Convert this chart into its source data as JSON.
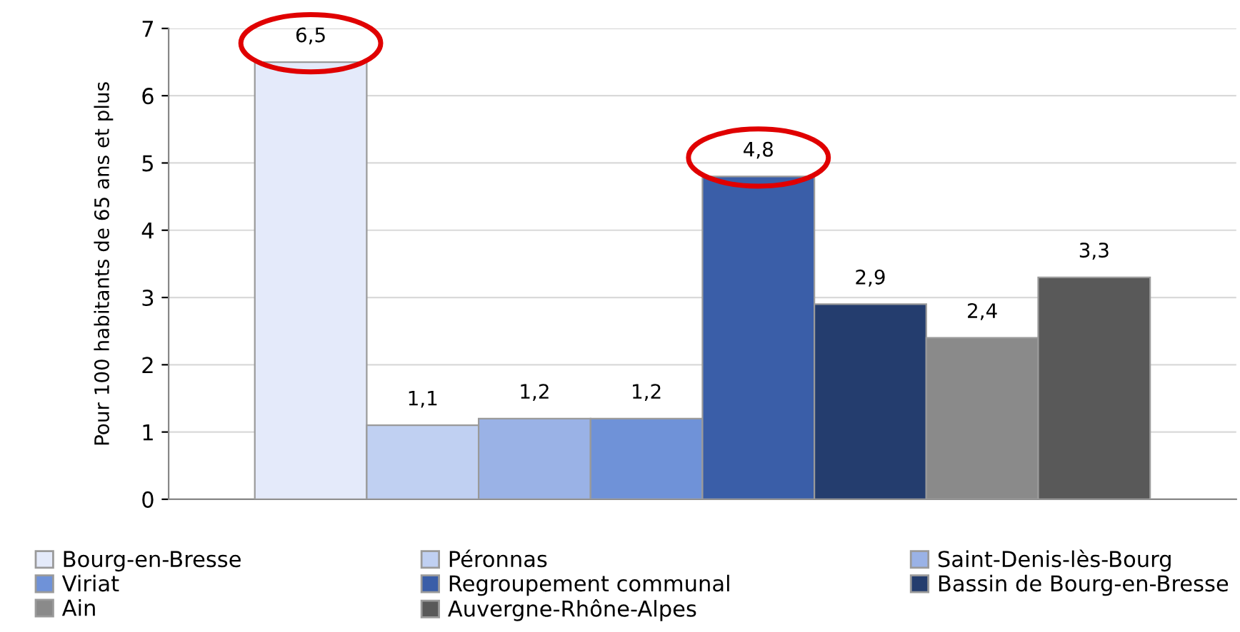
{
  "chart_data": {
    "type": "bar",
    "ylabel": "Pour 100 habitants de 65 ans et plus",
    "categories": [
      null
    ],
    "ylim": [
      0,
      7
    ],
    "yticks": [
      0,
      1,
      2,
      3,
      4,
      5,
      6,
      7
    ],
    "grid": "y",
    "legend": "bottom",
    "series": [
      {
        "name": "Bourg-en-Bresse",
        "color": "#e4eafa",
        "values": [
          6.5
        ],
        "value_labels": [
          "6,5"
        ]
      },
      {
        "name": "Péronnas",
        "color": "#c0d0f2",
        "values": [
          1.1
        ],
        "value_labels": [
          "1,1"
        ]
      },
      {
        "name": "Saint-Denis-lès-Bourg",
        "color": "#9ab2e6",
        "values": [
          1.2
        ],
        "value_labels": [
          "1,2"
        ]
      },
      {
        "name": "Viriat",
        "color": "#6f92d8",
        "values": [
          1.2
        ],
        "value_labels": [
          "1,2"
        ]
      },
      {
        "name": "Regroupement communal",
        "color": "#3a5ea8",
        "values": [
          4.8
        ],
        "value_labels": [
          "4,8"
        ]
      },
      {
        "name": "Bassin de Bourg-en-Bresse",
        "color": "#243d6e",
        "values": [
          2.9
        ],
        "value_labels": [
          "2,9"
        ]
      },
      {
        "name": "Ain",
        "color": "#8a8a8a",
        "values": [
          2.4
        ],
        "value_labels": [
          "2,4"
        ]
      },
      {
        "name": "Auvergne-Rhône-Alpes",
        "color": "#595959",
        "values": [
          3.3
        ],
        "value_labels": [
          "3,3"
        ]
      }
    ]
  }
}
